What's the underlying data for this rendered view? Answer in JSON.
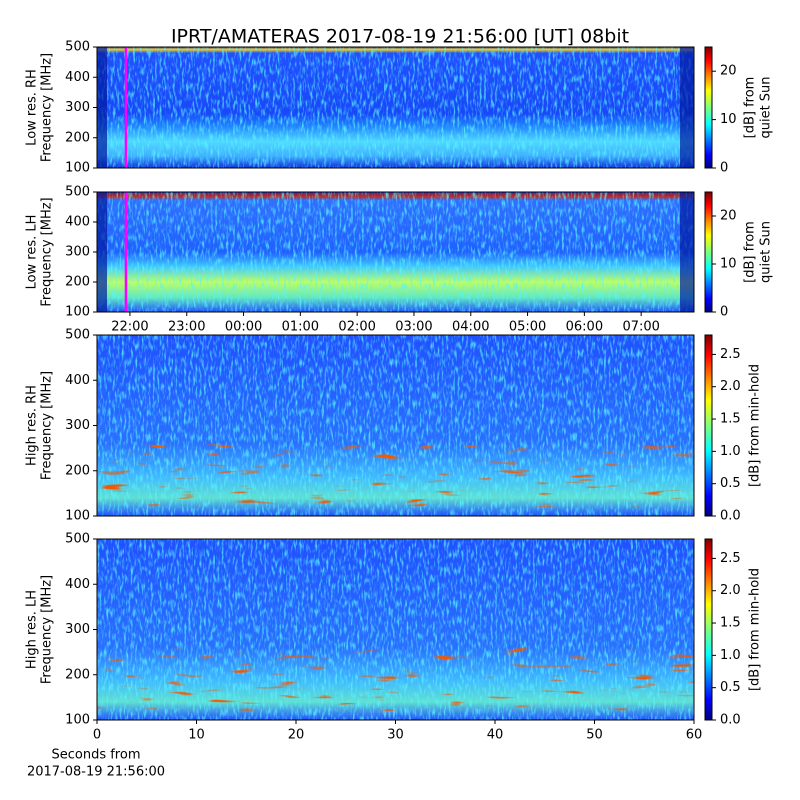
{
  "title": "IPRT/AMATERAS 2017-08-19 21:56:00 [UT]   08bit",
  "chart_data": [
    {
      "type": "spectrogram",
      "ylabel": [
        "Low res. RH",
        "Frequency [MHz]"
      ],
      "ylim": [
        100,
        500
      ],
      "yticks": [
        100,
        200,
        300,
        400,
        500
      ],
      "xlim": [
        21.42,
        31.93
      ],
      "marker_x": 21.93,
      "colorbar_label": [
        "[dB] from",
        "quiet Sun"
      ],
      "clim": [
        0,
        25
      ],
      "cticks": [
        0,
        10,
        20
      ]
    },
    {
      "type": "spectrogram",
      "ylabel": [
        "Low res. LH",
        "Frequency [MHz]"
      ],
      "ylim": [
        100,
        500
      ],
      "yticks": [
        100,
        200,
        300,
        400,
        500
      ],
      "xlim": [
        21.42,
        31.93
      ],
      "marker_x": 21.93,
      "xticks": [
        {
          "value": 22,
          "label": "22:00"
        },
        {
          "value": 23,
          "label": "23:00"
        },
        {
          "value": 24,
          "label": "00:00"
        },
        {
          "value": 25,
          "label": "01:00"
        },
        {
          "value": 26,
          "label": "02:00"
        },
        {
          "value": 27,
          "label": "03:00"
        },
        {
          "value": 28,
          "label": "04:00"
        },
        {
          "value": 29,
          "label": "05:00"
        },
        {
          "value": 30,
          "label": "06:00"
        },
        {
          "value": 31,
          "label": "07:00"
        }
      ],
      "colorbar_label": [
        "[dB] from",
        "quiet Sun"
      ],
      "clim": [
        0,
        25
      ],
      "cticks": [
        0,
        10,
        20
      ]
    },
    {
      "type": "spectrogram",
      "ylabel": [
        "High res. RH",
        "Frequency [MHz]"
      ],
      "ylim": [
        100,
        500
      ],
      "yticks": [
        100,
        200,
        300,
        400,
        500
      ],
      "xlim": [
        0,
        60
      ],
      "colorbar_label": [
        "[dB] from min-hold"
      ],
      "clim": [
        0,
        2.8
      ],
      "cticks": [
        {
          "value": 0,
          "label": "0.0"
        },
        {
          "value": 0.5,
          "label": "0.5"
        },
        {
          "value": 1,
          "label": "1.0"
        },
        {
          "value": 1.5,
          "label": "1.5"
        },
        {
          "value": 2,
          "label": "2.0"
        },
        {
          "value": 2.5,
          "label": "2.5"
        }
      ]
    },
    {
      "type": "spectrogram",
      "ylabel": [
        "High res. LH",
        "Frequency [MHz]"
      ],
      "ylim": [
        100,
        500
      ],
      "yticks": [
        100,
        200,
        300,
        400,
        500
      ],
      "xlim": [
        0,
        60
      ],
      "xticks": [
        0,
        10,
        20,
        30,
        40,
        50,
        60
      ],
      "xlabel": [
        "Seconds from",
        "2017-08-19 21:56:00"
      ],
      "colorbar_label": [
        "[dB] from min-hold"
      ],
      "clim": [
        0,
        2.8
      ],
      "cticks": [
        {
          "value": 0,
          "label": "0.0"
        },
        {
          "value": 0.5,
          "label": "0.5"
        },
        {
          "value": 1,
          "label": "1.0"
        },
        {
          "value": 1.5,
          "label": "1.5"
        },
        {
          "value": 2,
          "label": "2.0"
        },
        {
          "value": 2.5,
          "label": "2.5"
        }
      ]
    }
  ]
}
